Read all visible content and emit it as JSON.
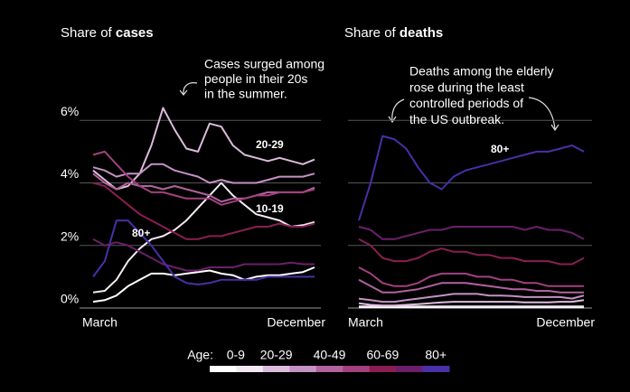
{
  "legend": {
    "title": "Age:"
  },
  "chart_data": [
    {
      "type": "line",
      "title": "Share of",
      "title_bold": "cases",
      "show_ytick_labels": true,
      "categories": [
        "March",
        null,
        null,
        null,
        null,
        null,
        null,
        null,
        null,
        null,
        null,
        null,
        null,
        null,
        null,
        null,
        null,
        null,
        null,
        "December"
      ],
      "ylim": [
        0,
        6.5
      ],
      "yticks": [
        {
          "value": 0,
          "label": "0%"
        },
        {
          "value": 2,
          "label": "2%"
        },
        {
          "value": 4,
          "label": "4%"
        },
        {
          "value": 6,
          "label": "6%"
        }
      ],
      "annotation": [
        "Cases surged among",
        "people in their 20s",
        "in the summer."
      ],
      "series": [
        {
          "name": "0-9",
          "color": "#ffffff",
          "values": [
            0.2,
            0.25,
            0.4,
            0.7,
            0.9,
            1.1,
            1.1,
            1.05,
            1.1,
            1.15,
            1.2,
            1.1,
            1.05,
            0.9,
            1.0,
            1.05,
            1.05,
            1.1,
            1.15,
            1.3
          ]
        },
        {
          "name": "10-19",
          "color": "#f3e9f3",
          "values": [
            0.5,
            0.55,
            0.9,
            1.5,
            1.9,
            2.2,
            2.3,
            2.5,
            2.8,
            3.2,
            3.6,
            4.0,
            3.6,
            3.3,
            3.0,
            2.9,
            2.8,
            2.6,
            2.65,
            2.75
          ]
        },
        {
          "name": "20-29",
          "color": "#dcbcdc",
          "values": [
            4.4,
            4.1,
            3.8,
            3.9,
            4.3,
            5.2,
            6.4,
            5.7,
            5.1,
            5.0,
            5.9,
            5.8,
            5.2,
            4.9,
            4.8,
            4.7,
            4.8,
            4.7,
            4.6,
            4.75
          ]
        },
        {
          "color": "#c592c5",
          "values": [
            4.5,
            4.4,
            4.2,
            4.3,
            4.3,
            4.6,
            4.6,
            4.4,
            4.3,
            4.2,
            4.0,
            4.1,
            4.0,
            4.0,
            4.0,
            4.1,
            4.2,
            4.2,
            4.2,
            4.3
          ]
        },
        {
          "name": "40-49",
          "color": "#b2629f",
          "values": [
            4.3,
            4.0,
            3.8,
            4.0,
            3.9,
            3.9,
            3.8,
            3.9,
            3.8,
            3.7,
            3.6,
            3.4,
            3.5,
            3.5,
            3.6,
            3.7,
            3.7,
            3.7,
            3.7,
            3.85
          ]
        },
        {
          "color": "#a3417f",
          "values": [
            4.9,
            5.0,
            4.6,
            4.2,
            3.9,
            3.7,
            3.7,
            3.6,
            3.5,
            3.5,
            3.5,
            3.3,
            3.4,
            3.5,
            3.6,
            3.6,
            3.7,
            3.7,
            3.7,
            3.8
          ]
        },
        {
          "name": "60-69",
          "color": "#8a1e52",
          "values": [
            4.0,
            3.9,
            3.6,
            3.3,
            3.0,
            2.8,
            2.6,
            2.4,
            2.2,
            2.2,
            2.3,
            2.3,
            2.4,
            2.5,
            2.6,
            2.6,
            2.7,
            2.6,
            2.6,
            2.7
          ]
        },
        {
          "color": "#6b1f6b",
          "values": [
            2.2,
            2.0,
            2.1,
            2.0,
            1.8,
            1.6,
            1.4,
            1.3,
            1.2,
            1.2,
            1.3,
            1.3,
            1.3,
            1.4,
            1.4,
            1.4,
            1.4,
            1.45,
            1.4,
            1.4
          ]
        },
        {
          "name": "80+",
          "color": "#4a2fa8",
          "values": [
            1.0,
            1.5,
            2.8,
            2.8,
            2.4,
            2.0,
            1.5,
            1.0,
            0.8,
            0.75,
            0.8,
            0.9,
            0.9,
            0.9,
            0.9,
            1.0,
            1.0,
            1.0,
            1.0,
            1.0
          ]
        }
      ]
    },
    {
      "type": "line",
      "title": "Share of",
      "title_bold": "deaths",
      "show_ytick_labels": false,
      "categories": [
        "March",
        null,
        null,
        null,
        null,
        null,
        null,
        null,
        null,
        null,
        null,
        null,
        null,
        null,
        null,
        null,
        null,
        null,
        null,
        "December"
      ],
      "ylim": [
        0,
        6.5
      ],
      "yticks": [
        0,
        2,
        4,
        6
      ],
      "annotation": [
        "Deaths among the elderly",
        "rose during the least",
        "controlled periods of",
        "the US outbreak."
      ],
      "series": [
        {
          "name": "0-9",
          "color": "#ffffff",
          "values": [
            0.02,
            0.02,
            0.02,
            0.02,
            0.02,
            0.02,
            0.02,
            0.02,
            0.02,
            0.02,
            0.02,
            0.02,
            0.02,
            0.02,
            0.02,
            0.02,
            0.02,
            0.02,
            0.02,
            0.02
          ]
        },
        {
          "name": "10-19",
          "color": "#f3e9f3",
          "values": [
            0.05,
            0.05,
            0.05,
            0.05,
            0.05,
            0.05,
            0.05,
            0.05,
            0.05,
            0.05,
            0.05,
            0.05,
            0.05,
            0.05,
            0.05,
            0.05,
            0.05,
            0.05,
            0.05,
            0.05
          ]
        },
        {
          "name": "20-29",
          "color": "#dcbcdc",
          "values": [
            0.15,
            0.1,
            0.08,
            0.08,
            0.1,
            0.12,
            0.15,
            0.18,
            0.2,
            0.2,
            0.2,
            0.2,
            0.2,
            0.2,
            0.18,
            0.18,
            0.18,
            0.2,
            0.2,
            0.25
          ]
        },
        {
          "color": "#c592c5",
          "values": [
            0.3,
            0.25,
            0.2,
            0.2,
            0.25,
            0.3,
            0.35,
            0.4,
            0.45,
            0.45,
            0.45,
            0.4,
            0.4,
            0.38,
            0.35,
            0.35,
            0.35,
            0.35,
            0.3,
            0.4
          ]
        },
        {
          "name": "40-49",
          "color": "#b2629f",
          "values": [
            0.9,
            0.7,
            0.5,
            0.5,
            0.55,
            0.6,
            0.7,
            0.8,
            0.8,
            0.8,
            0.75,
            0.7,
            0.65,
            0.6,
            0.6,
            0.55,
            0.55,
            0.5,
            0.5,
            0.5
          ]
        },
        {
          "color": "#a3417f",
          "values": [
            1.3,
            1.1,
            0.8,
            0.7,
            0.7,
            0.8,
            1.0,
            1.1,
            1.1,
            1.1,
            1.0,
            1.0,
            0.9,
            0.9,
            0.8,
            0.8,
            0.7,
            0.7,
            0.7,
            0.7
          ]
        },
        {
          "name": "60-69",
          "color": "#8a1e52",
          "values": [
            2.2,
            2.0,
            1.6,
            1.5,
            1.5,
            1.6,
            1.8,
            1.9,
            1.8,
            1.8,
            1.7,
            1.7,
            1.6,
            1.6,
            1.5,
            1.5,
            1.5,
            1.4,
            1.4,
            1.6
          ]
        },
        {
          "color": "#6b1f6b",
          "values": [
            2.6,
            2.5,
            2.2,
            2.2,
            2.3,
            2.4,
            2.5,
            2.5,
            2.6,
            2.6,
            2.6,
            2.6,
            2.6,
            2.6,
            2.5,
            2.6,
            2.5,
            2.5,
            2.4,
            2.2
          ]
        },
        {
          "name": "80+",
          "color": "#4a2fa8",
          "values": [
            2.8,
            4.0,
            5.5,
            5.4,
            5.1,
            4.5,
            4.0,
            3.8,
            4.2,
            4.4,
            4.5,
            4.6,
            4.7,
            4.8,
            4.9,
            5.0,
            5.0,
            5.1,
            5.2,
            5.0
          ]
        }
      ]
    }
  ]
}
